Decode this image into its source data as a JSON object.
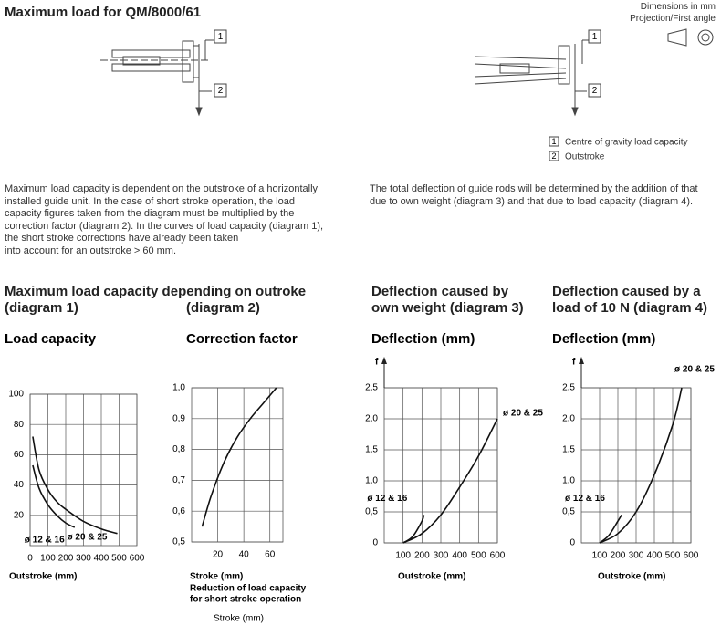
{
  "header": {
    "title": "Maximum load for QM/8000/61",
    "dimensions": "Dimensions in mm",
    "projection": "Projection/First angle"
  },
  "drawings": [
    {
      "callouts": [
        "1",
        "2"
      ]
    },
    {
      "callouts": [
        "1",
        "2"
      ]
    }
  ],
  "legend": [
    {
      "number": "1",
      "label": "Centre of gravity load capacity"
    },
    {
      "number": "2",
      "label": "Outstroke"
    }
  ],
  "paragraphs": [
    [
      "Maximum load capacity is dependent on the outstroke of a horizontally",
      "installed guide unit. In the case of short stroke operation, the load",
      "capacity figures taken from the diagram must be multiplied by the",
      "correction factor (diagram 2). In the curves of load capacity (diagram 1),",
      "the short stroke corrections have already been taken",
      "into account for an outstroke > 60 mm."
    ],
    [
      "The total deflection of guide rods will be determined by the addition of that",
      "due to own weight (diagram 3) and that due to load capacity (diagram 4)."
    ]
  ],
  "headings": [
    "Maximum load capacity depending on outroke",
    "(diagram 1)",
    "(diagram 2)",
    "Deflection caused by own weight (diagram 3)",
    "Deflection caused by a load of 10 N (diagram 4)"
  ],
  "chart_data": [
    {
      "type": "line",
      "title": "Load capacity",
      "x_label": "Outstroke (mm)",
      "grid": true,
      "xlim": [
        0,
        600
      ],
      "xticks": [
        0,
        100,
        200,
        300,
        400,
        500,
        600
      ],
      "ylim": [
        0,
        100
      ],
      "yticks": [
        20,
        40,
        60,
        80,
        100
      ],
      "series": [
        {
          "name": "ø 20 & 25",
          "color": "#111111",
          "x": [
            15,
            50,
            100,
            150,
            200,
            300,
            400,
            490
          ],
          "values": [
            72,
            50,
            37,
            29,
            24,
            16,
            11,
            8
          ]
        },
        {
          "name": "ø 12 & 16",
          "color": "#111111",
          "x": [
            15,
            50,
            100,
            150,
            200,
            250
          ],
          "values": [
            53,
            38,
            27,
            20,
            15,
            12
          ]
        }
      ]
    },
    {
      "type": "line",
      "title": "Correction factor",
      "x_label": "Stroke (mm)",
      "x_note": [
        "Reduction of load capacity",
        "for short stroke operation"
      ],
      "footer": "Stroke (mm)",
      "grid": true,
      "xlim": [
        0,
        70
      ],
      "xticks": [
        20,
        40,
        60
      ],
      "ylim": [
        0.5,
        1.0
      ],
      "yticks": [
        {
          "value": 0.5,
          "label": "0,5"
        },
        {
          "value": 0.6,
          "label": "0,6"
        },
        {
          "value": 0.7,
          "label": "0,7"
        },
        {
          "value": 0.8,
          "label": "0,8"
        },
        {
          "value": 0.9,
          "label": "0,9"
        },
        {
          "value": 1.0,
          "label": "1,0"
        }
      ],
      "series": [
        {
          "color": "#111111",
          "x": [
            8,
            15,
            25,
            35,
            45,
            55,
            65
          ],
          "values": [
            0.55,
            0.65,
            0.76,
            0.84,
            0.9,
            0.95,
            1.0
          ]
        }
      ]
    },
    {
      "type": "line",
      "title": "Deflection (mm)",
      "x_label": "Outstroke (mm)",
      "y_label": "f",
      "grid": true,
      "xlim": [
        0,
        600
      ],
      "xticks": [
        100,
        200,
        300,
        400,
        500,
        600
      ],
      "ylim": [
        0,
        2.5
      ],
      "yticks": [
        0,
        {
          "value": 0.5,
          "label": "0,5"
        },
        {
          "value": 1.0,
          "label": "1,0"
        },
        {
          "value": 1.5,
          "label": "1,5"
        },
        {
          "value": 2.0,
          "label": "2,0"
        },
        {
          "value": 2.5,
          "label": "2,5"
        }
      ],
      "series": [
        {
          "name": "ø 20 & 25",
          "color": "#111111",
          "x": [
            100,
            200,
            300,
            400,
            500,
            600
          ],
          "values": [
            0,
            0.15,
            0.45,
            0.9,
            1.4,
            2.0
          ]
        },
        {
          "name": "ø 12 & 16",
          "color": "#111111",
          "x": [
            100,
            150,
            200,
            210
          ],
          "values": [
            0,
            0.1,
            0.35,
            0.45
          ]
        }
      ]
    },
    {
      "type": "line",
      "title": "Deflection (mm)",
      "x_label": "Outstroke (mm)",
      "y_label": "f",
      "grid": true,
      "xlim": [
        0,
        600
      ],
      "xticks": [
        100,
        200,
        300,
        400,
        500,
        600
      ],
      "ylim": [
        0,
        2.5
      ],
      "yticks": [
        0,
        {
          "value": 0.5,
          "label": "0,5"
        },
        {
          "value": 1.0,
          "label": "1,0"
        },
        {
          "value": 1.5,
          "label": "1,5"
        },
        {
          "value": 2.0,
          "label": "2,0"
        },
        {
          "value": 2.5,
          "label": "2,5"
        }
      ],
      "series": [
        {
          "name": "ø 20 & 25",
          "color": "#111111",
          "x": [
            100,
            200,
            300,
            400,
            500,
            550
          ],
          "values": [
            0,
            0.15,
            0.5,
            1.1,
            1.9,
            2.5
          ]
        },
        {
          "name": "ø 12 & 16",
          "color": "#111111",
          "x": [
            100,
            150,
            200,
            220
          ],
          "values": [
            0,
            0.12,
            0.35,
            0.45
          ]
        }
      ]
    }
  ]
}
